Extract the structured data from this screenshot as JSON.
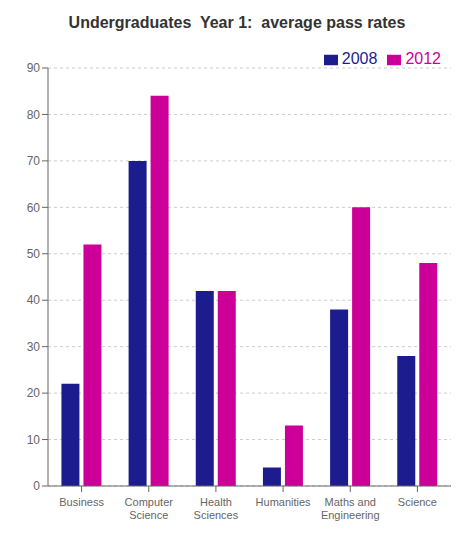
{
  "chart_data": {
    "type": "bar",
    "title": "Undergraduates  Year 1:  average pass rates",
    "categories": [
      "Business",
      "Computer\nScience",
      "Health\nSciences",
      "Humanities",
      "Maths and\nEngineering",
      "Science"
    ],
    "series": [
      {
        "name": "2008",
        "color": "#1c1c8f",
        "values": [
          22,
          70,
          42,
          4,
          38,
          28
        ]
      },
      {
        "name": "2012",
        "color": "#cc0099",
        "values": [
          52,
          84,
          42,
          13,
          60,
          48
        ]
      }
    ],
    "ylim": [
      0,
      90
    ],
    "yticks": [
      0,
      10,
      20,
      30,
      40,
      50,
      60,
      70,
      80,
      90
    ],
    "grid": true,
    "legend": "upper right"
  }
}
